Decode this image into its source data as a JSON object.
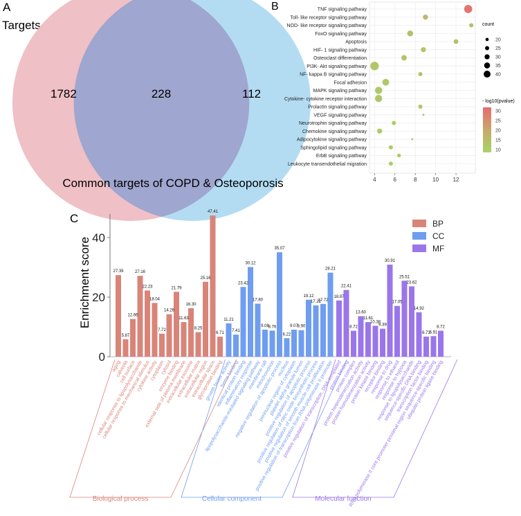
{
  "panels": {
    "a": "A",
    "b": "B",
    "c": "C"
  },
  "venn": {
    "title_top": "Targets of MBSYQ",
    "title_bottom": "Common targets of COPD & Osteoporosis",
    "left_only": "1782",
    "overlap": "228",
    "right_only": "112",
    "colors": {
      "left": "#efc0c5",
      "right": "#b3dcf2",
      "overlap": "#9fa6cf"
    }
  },
  "chart_data": [
    {
      "type": "scatter",
      "panel": "B",
      "x": [
        13.2,
        9.0,
        13.5,
        7.5,
        12.0,
        8.8,
        6.9,
        4.0,
        8.5,
        5.1,
        4.4,
        4.4,
        8.5,
        8.8,
        5.9,
        4.5,
        7.7,
        5.6,
        6.4,
        5.6
      ],
      "y": [
        "TNF signaling pathway",
        "Toll- like receptor signaling pathway",
        "NOD- like receptor signaling pathway",
        "FoxO signaling pathway",
        "Apoptosis",
        "HIF- 1 signaling pathway",
        "Osteoclast differentiation",
        "PI3K- Akt signaling pathway",
        "NF- kappa B signaling pathway",
        "Focal adhesion",
        "MAPK signaling pathway",
        "Cytokine- cytokine receptor interaction",
        "Prolactin signaling pathway",
        "VEGF signaling pathway",
        "Neurotrophin signaling pathway",
        "Chemokine signaling pathway",
        "Adipocytokine signaling pathway",
        "Sphingolipid signaling pathway",
        "ErbB signaling pathway",
        "Leukocyte transendothelial migration"
      ],
      "size": [
        40,
        26,
        22,
        30,
        24,
        26,
        28,
        42,
        22,
        34,
        36,
        36,
        22,
        12,
        22,
        26,
        12,
        22,
        20,
        22
      ],
      "color_value": [
        33,
        17,
        15,
        14,
        15,
        13,
        13,
        12,
        13,
        11,
        11,
        12,
        13,
        11,
        10,
        11,
        10,
        10,
        10,
        9
      ],
      "xlim": [
        3.5,
        13.9
      ],
      "xticks": [
        "4",
        "6",
        "8",
        "10",
        "12"
      ],
      "size_legend": {
        "title": "count",
        "values": [
          "20",
          "25",
          "30",
          "35",
          "40"
        ]
      },
      "color_legend": {
        "title": "- log10(pvalue)",
        "ticks": [
          "30",
          "25",
          "20",
          "15",
          "10"
        ],
        "high_color": "#ea6a6e",
        "low_color": "#a6d468"
      }
    },
    {
      "type": "bar",
      "panel": "C",
      "ylabel": "Enrichment score",
      "ylim": [
        0,
        48
      ],
      "yticks": [
        "0",
        "20",
        "40"
      ],
      "legend": [
        {
          "name": "BP",
          "color": "#d98479"
        },
        {
          "name": "CC",
          "color": "#6f9df0"
        },
        {
          "name": "MF",
          "color": "#9a76ea"
        }
      ],
      "series": [
        {
          "name": "BP",
          "group_label": "Biological process",
          "categories": [
            "aging",
            "calveola",
            "cell surface",
            "cellular response to lipopolysaccharide",
            "cellular response to mechanical stimulus",
            "cytokine activity",
            "cytoplasm",
            "cytosol",
            "enzyme binding",
            "external side of plasma membrane",
            "extracellular exosome",
            "extracellular matrix",
            "extracellular region",
            "extracellular space",
            "glycoprotein binding"
          ],
          "values": [
            27.39,
            5.87,
            12.66,
            27.16,
            22.23,
            18.04,
            7.72,
            14.26,
            21.79,
            11.63,
            16.3,
            8.25,
            25.16,
            47.41,
            6.71
          ],
          "labels": [
            "27.39",
            "5.87",
            "12.66",
            "27.16",
            "22.23",
            "18.04",
            "7.72",
            "14.26",
            "21.79",
            "11.63",
            "16.30",
            "8.25",
            "25.16",
            "47.41",
            "6.71"
          ]
        },
        {
          "name": "CC",
          "group_label": "Cellular component",
          "categories": [
            "growth factor activity",
            "heme binding",
            "identical protein binding",
            "inflammatory response",
            "lipopolysaccharide-mediated signaling pathway",
            "membrane raft",
            "mitochondrion",
            "negative regulation of apoptotic process",
            "nucleus",
            "perinuclear region of cytoplasm",
            "platelet alpha granule lumen",
            "positive regulation of apoptotic process",
            "positive regulation of nitric oxide biosynthetic process",
            "positive regulation of smooth muscle cell proliferation",
            "positive regulation of transcription from RNA polymerase II promoter"
          ],
          "values": [
            11.21,
            7.41,
            23.42,
            30.12,
            17.8,
            9.08,
            8.76,
            35.07,
            6.22,
            9.07,
            8.9,
            19.12,
            17.22,
            17.72,
            28.21
          ],
          "labels": [
            "11.21",
            "7.41",
            "23.42",
            "30.12",
            "17.80",
            "9.08",
            "8.76",
            "35.07",
            "6.22",
            "9.07",
            "8.90",
            "19.12",
            "17.22",
            "17.72",
            "28.21"
          ]
        },
        {
          "name": "MF",
          "group_label": "Molecular function",
          "categories": [
            "positive regulation of transcription, DNA-templated",
            "protein binding",
            "protein complex",
            "protein heterodimerization activity",
            "protein homodimerization activity",
            "protein kinase binding",
            "receptor binding",
            "response to drug",
            "response to ethanol",
            "response to hypoxia",
            "response to lipopolysaccharide",
            "sequence-specific DNA binding",
            "transcription factor binding",
            "RNA polymerase II core promoter proximal region sequence-specific binding",
            "ubiquitin protein ligase binding"
          ],
          "values": [
            18.87,
            22.41,
            8.72,
            13.6,
            11.61,
            10.38,
            9.39,
            30.91,
            17.05,
            25.51,
            23.62,
            14.92,
            6.73,
            6.91,
            8.72
          ],
          "labels": [
            "18.87",
            "22.41",
            "8.72",
            "13.60",
            "11.61",
            "10.38",
            "9.39",
            "30.91",
            "17.05",
            "25.51",
            "23.62",
            "14.92",
            "6.73",
            "6.91",
            "8.72"
          ]
        }
      ]
    }
  ]
}
